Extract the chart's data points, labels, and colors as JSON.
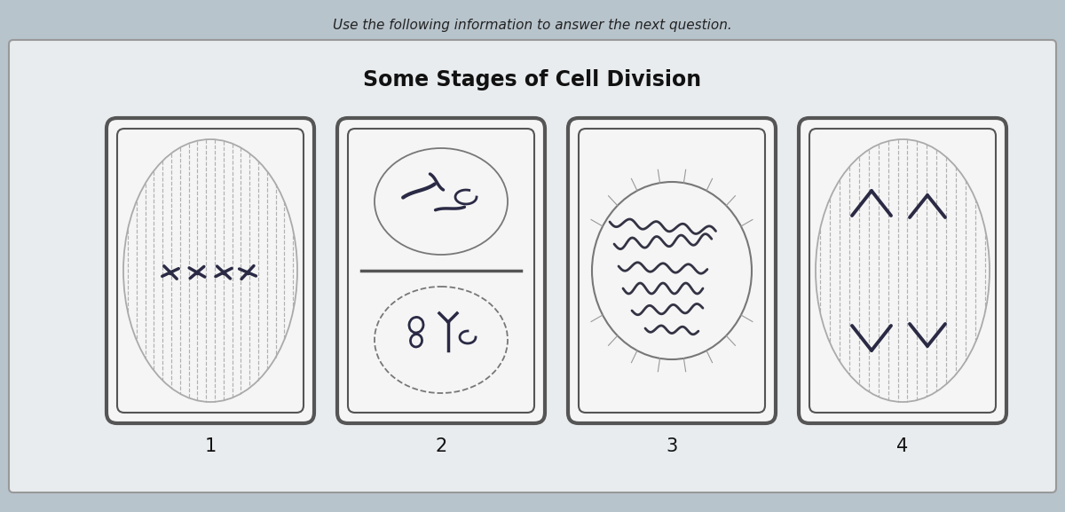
{
  "title": "Some Stages of Cell Division",
  "subtitle": "Use the following information to answer the next question.",
  "labels": [
    "1",
    "2",
    "3",
    "4"
  ],
  "bg_outer": "#b8c4cc",
  "bg_panel": "#e8ecee",
  "cell_bg": "#f5f5f5",
  "border_dark": "#555555",
  "border_mid": "#888888",
  "spindle_color": "#bbbbbb",
  "chrom_color": "#2a2a45",
  "title_fontsize": 17,
  "subtitle_fontsize": 11,
  "label_fontsize": 15
}
